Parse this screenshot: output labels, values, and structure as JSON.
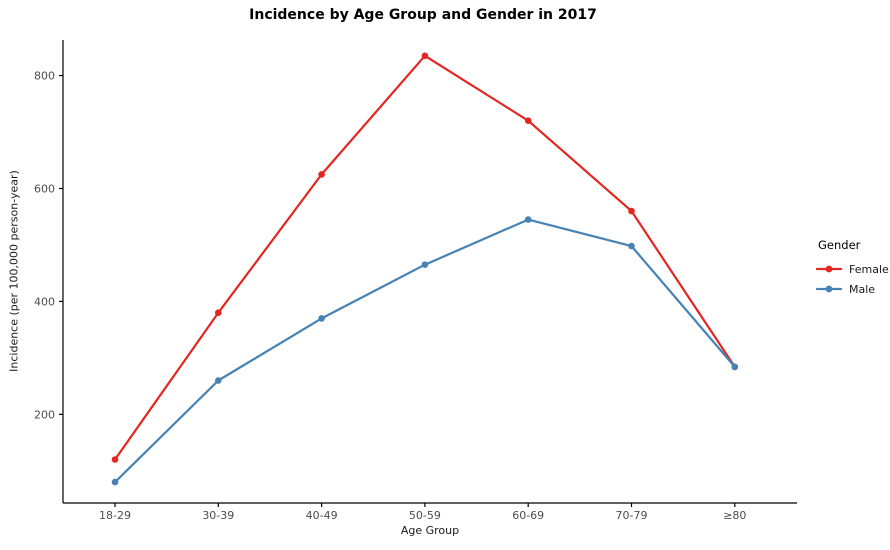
{
  "page": {
    "background": "#ffffff"
  },
  "chart_data": {
    "type": "line",
    "title": "Incidence by Age Group and Gender in 2017",
    "xlabel": "Age Group",
    "ylabel": "Incidence (per 100,000 person-year)",
    "categories": [
      "18-29",
      "30-39",
      "40-49",
      "50-59",
      "60-69",
      "70-79",
      "≥80"
    ],
    "series": [
      {
        "name": "Female",
        "color": "#e52620",
        "values": [
          120,
          380,
          625,
          835,
          720,
          560,
          284
        ]
      },
      {
        "name": "Male",
        "color": "#4682b4",
        "values": [
          80,
          260,
          370,
          465,
          545,
          498,
          284
        ]
      }
    ],
    "yticks": [
      200,
      400,
      600,
      800
    ],
    "ylim": [
      43,
      863
    ],
    "grid": false,
    "legend": {
      "title": "Gender",
      "position": "right"
    },
    "axis_color": "#000000",
    "tick_label_color": "#4d4d4d"
  }
}
